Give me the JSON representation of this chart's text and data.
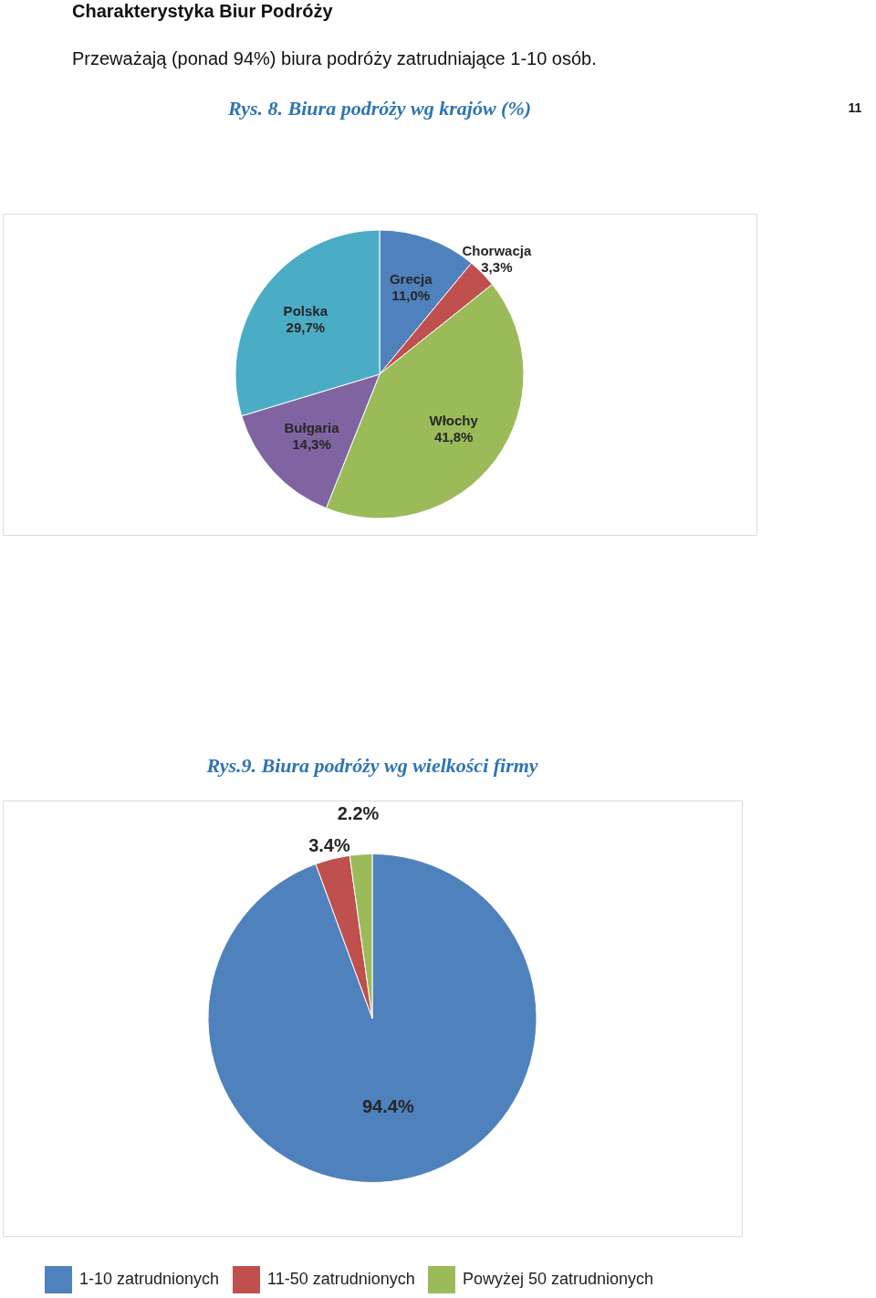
{
  "chart_data": [
    {
      "type": "pie",
      "title": "Rys. 8. Biura podróży wg krajów (%)",
      "annotations": [
        "Charakterystyka Biur Podróży",
        "Przeważają (ponad 94%) biura podróży zatrudniające 1-10 osób.",
        "11"
      ],
      "categories": [
        "Grecja",
        "Chorwacja",
        "Włochy",
        "Bułgaria",
        "Polska"
      ],
      "values": [
        11.0,
        3.3,
        41.8,
        14.3,
        29.7
      ],
      "colors": [
        "#4f81bd",
        "#c0504d",
        "#9bbb59",
        "#8064a2",
        "#4bacc6"
      ],
      "value_labels": [
        "11,0%",
        "3,3%",
        "41,8%",
        "14,3%",
        "29,7%"
      ],
      "legend": false
    },
    {
      "type": "pie",
      "title": "Rys.9. Biura podróży wg wielkości firmy",
      "categories": [
        "1-10 zatrudnionych",
        "11-50 zatrudnionych",
        "Powyżej 50 zatrudnionych"
      ],
      "values": [
        94.4,
        3.4,
        2.2
      ],
      "colors": [
        "#4f81bd",
        "#c0504d",
        "#9bbb59"
      ],
      "value_labels": [
        "94.4%",
        "3.4%",
        "2.2%"
      ],
      "legend": "bottom"
    }
  ]
}
